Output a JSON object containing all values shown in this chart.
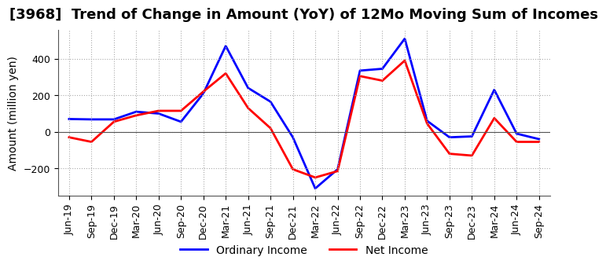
{
  "title": "[3968]  Trend of Change in Amount (YoY) of 12Mo Moving Sum of Incomes",
  "ylabel": "Amount (million yen)",
  "x_labels": [
    "Jun-19",
    "Sep-19",
    "Dec-19",
    "Mar-20",
    "Jun-20",
    "Sep-20",
    "Dec-20",
    "Mar-21",
    "Jun-21",
    "Sep-21",
    "Dec-21",
    "Mar-22",
    "Jun-22",
    "Sep-22",
    "Dec-22",
    "Mar-23",
    "Jun-23",
    "Sep-23",
    "Dec-23",
    "Mar-24",
    "Jun-24",
    "Sep-24"
  ],
  "ordinary_income": [
    70,
    68,
    68,
    110,
    100,
    55,
    210,
    470,
    240,
    165,
    -30,
    -310,
    -205,
    335,
    345,
    510,
    60,
    -30,
    -25,
    230,
    -10,
    -40
  ],
  "net_income": [
    -30,
    -55,
    55,
    90,
    115,
    115,
    220,
    320,
    130,
    20,
    -205,
    -250,
    -215,
    305,
    280,
    390,
    45,
    -120,
    -130,
    75,
    -55,
    -55
  ],
  "ordinary_color": "#0000ff",
  "net_color": "#ff0000",
  "background_color": "#ffffff",
  "grid_color": "#aaaaaa",
  "ylim": [
    -350,
    560
  ],
  "yticks": [
    -200,
    0,
    200,
    400
  ],
  "legend_labels": [
    "Ordinary Income",
    "Net Income"
  ],
  "title_fontsize": 13,
  "axis_fontsize": 10,
  "tick_fontsize": 9
}
